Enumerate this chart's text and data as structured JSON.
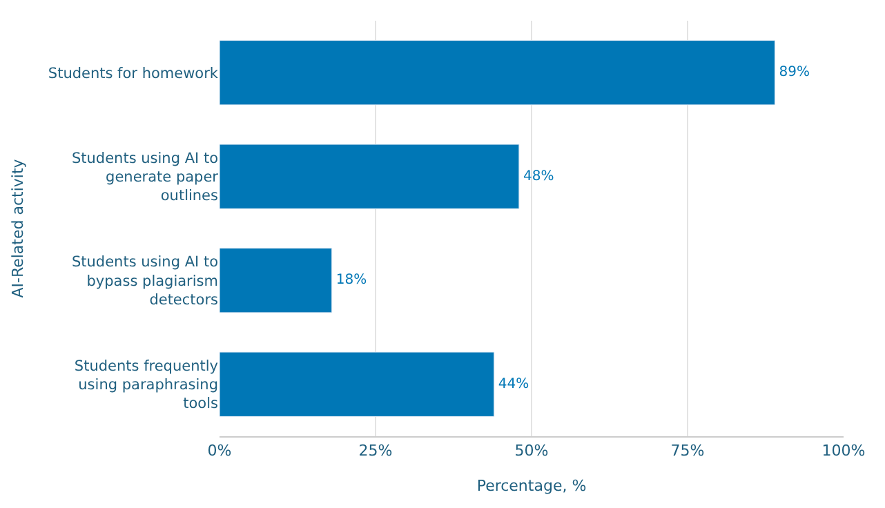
{
  "chart_data": {
    "type": "bar",
    "orientation": "horizontal",
    "xlabel": "Percentage, %",
    "ylabel": "AI-Related activity",
    "categories": [
      "Students for homework",
      "Students using AI to generate paper outlines",
      "Students using AI to bypass plagiarism detectors",
      "Students frequently using paraphrasing tools"
    ],
    "values": [
      89,
      48,
      18,
      44
    ],
    "value_labels": [
      "89%",
      "48%",
      "18%",
      "44%"
    ],
    "color": "#0077b6",
    "xlim": [
      0,
      100
    ],
    "xticks": [
      {
        "value": 0,
        "label": "0%"
      },
      {
        "value": 25,
        "label": "25%"
      },
      {
        "value": 50,
        "label": "50%"
      },
      {
        "value": 75,
        "label": "75%"
      },
      {
        "value": 100,
        "label": "100%"
      }
    ],
    "grid": "x",
    "legend": false
  }
}
